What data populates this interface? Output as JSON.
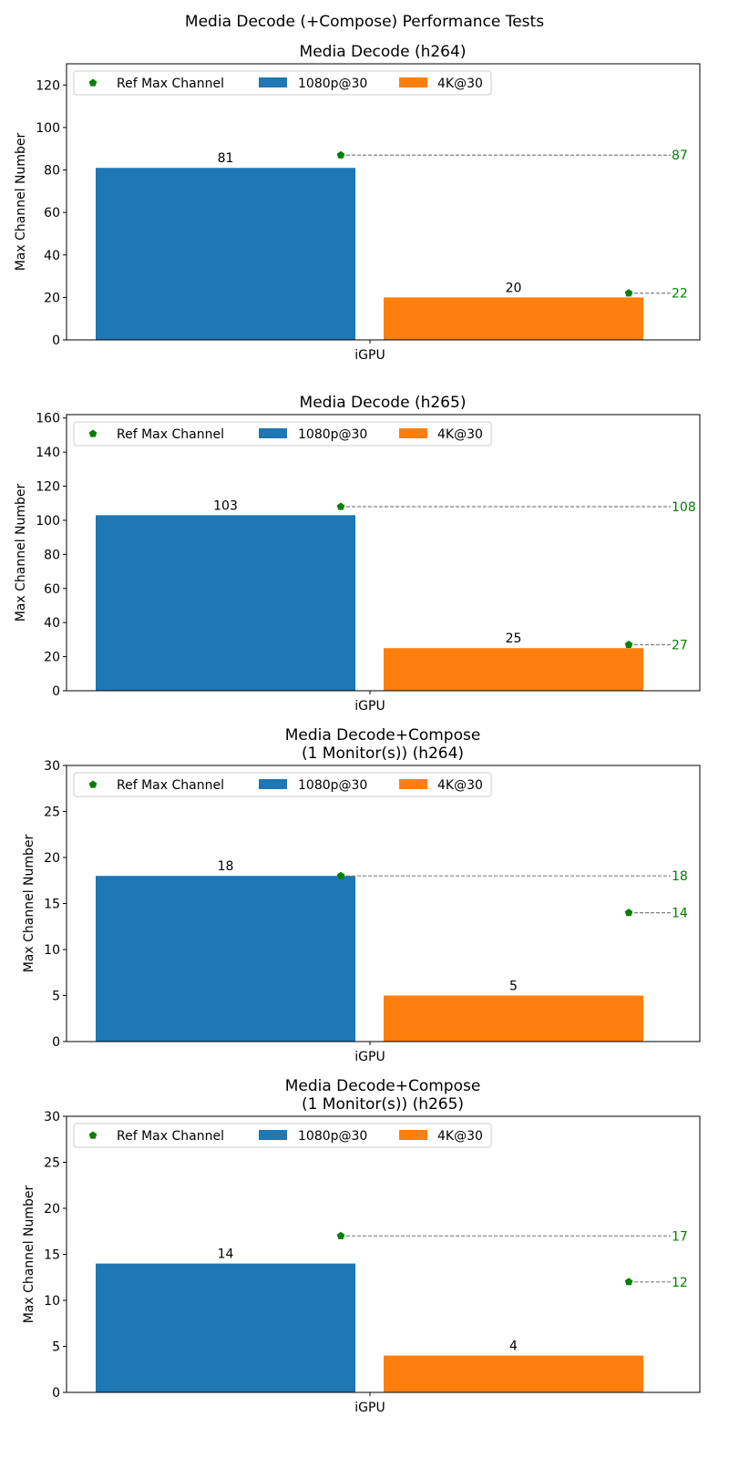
{
  "chart_data": {
    "title": "Media Decode (+Compose) Performance Tests",
    "legend_placement": "upper-left",
    "legend": [
      "Ref Max Channel",
      "1080p@30",
      "4K@30"
    ],
    "colors": {
      "1080p@30": "#1f77b4",
      "4K@30": "#ff7f0e",
      "ref": "#008000",
      "ref_line": "#808080"
    },
    "subplots": [
      {
        "type": "bar",
        "title": [
          "Media Decode (h264)"
        ],
        "ylabel": "Max Channel Number",
        "categories": [
          "iGPU"
        ],
        "ylim": [
          0,
          130
        ],
        "yticks": [
          0,
          20,
          40,
          60,
          80,
          100,
          120
        ],
        "series": [
          {
            "name": "1080p@30",
            "values": [
              81
            ],
            "ref": 87
          },
          {
            "name": "4K@30",
            "values": [
              20
            ],
            "ref": 22
          }
        ]
      },
      {
        "type": "bar",
        "title": [
          "Media Decode (h265)"
        ],
        "ylabel": "Max Channel Number",
        "categories": [
          "iGPU"
        ],
        "ylim": [
          0,
          162
        ],
        "yticks": [
          0,
          20,
          40,
          60,
          80,
          100,
          120,
          140,
          160
        ],
        "series": [
          {
            "name": "1080p@30",
            "values": [
              103
            ],
            "ref": 108
          },
          {
            "name": "4K@30",
            "values": [
              25
            ],
            "ref": 27
          }
        ]
      },
      {
        "type": "bar",
        "title": [
          "Media Decode+Compose",
          "(1 Monitor(s)) (h264)"
        ],
        "ylabel": "Max Channel Number",
        "categories": [
          "iGPU"
        ],
        "ylim": [
          0,
          30
        ],
        "yticks": [
          0,
          5,
          10,
          15,
          20,
          25,
          30
        ],
        "series": [
          {
            "name": "1080p@30",
            "values": [
              18
            ],
            "ref": 18
          },
          {
            "name": "4K@30",
            "values": [
              5
            ],
            "ref": 14
          }
        ]
      },
      {
        "type": "bar",
        "title": [
          "Media Decode+Compose",
          "(1 Monitor(s)) (h265)"
        ],
        "ylabel": "Max Channel Number",
        "categories": [
          "iGPU"
        ],
        "ylim": [
          0,
          30
        ],
        "yticks": [
          0,
          5,
          10,
          15,
          20,
          25,
          30
        ],
        "series": [
          {
            "name": "1080p@30",
            "values": [
              14
            ],
            "ref": 17
          },
          {
            "name": "4K@30",
            "values": [
              4
            ],
            "ref": 12
          }
        ]
      }
    ]
  }
}
